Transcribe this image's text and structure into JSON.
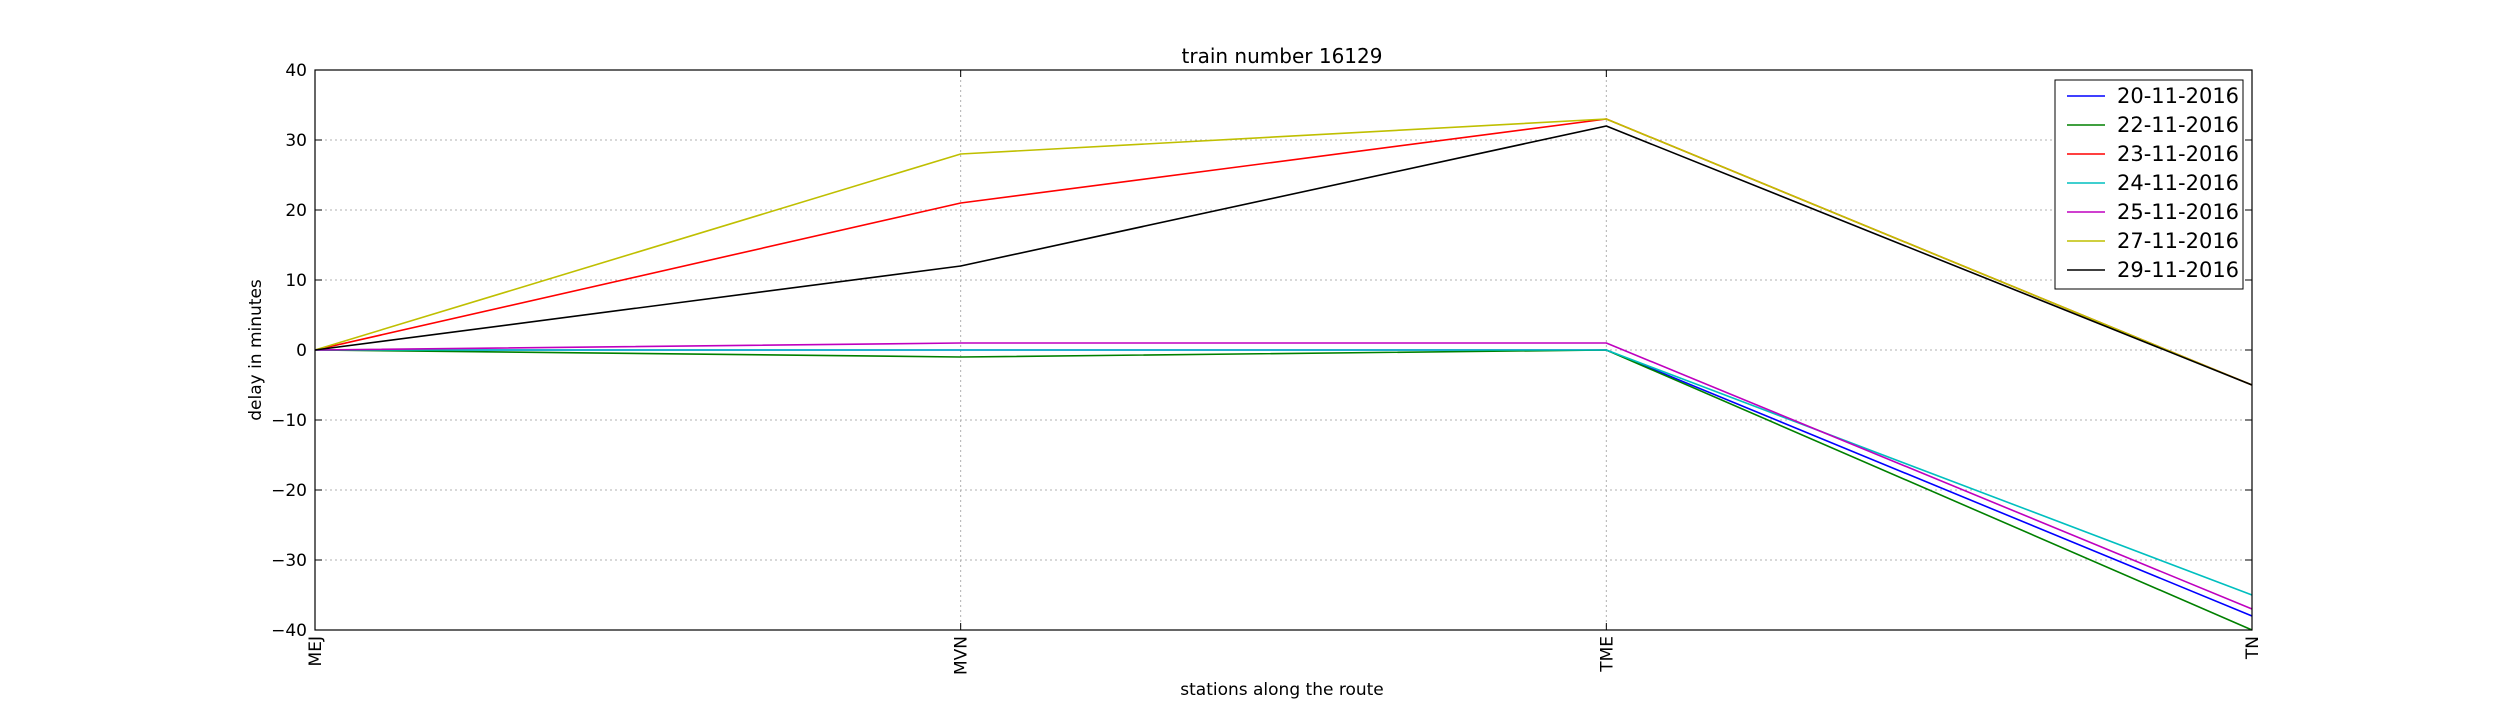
{
  "chart_data": {
    "type": "line",
    "title": "train number 16129",
    "xlabel": "stations along the route",
    "ylabel": "delay in minutes",
    "categories": [
      "MEJ",
      "MVN",
      "TME",
      "TN"
    ],
    "ylim": [
      -40,
      40
    ],
    "yticks": [
      40,
      30,
      20,
      10,
      0,
      -10,
      -20,
      -30,
      -40
    ],
    "ytick_labels": [
      "40",
      "30",
      "20",
      "10",
      "0",
      "−10",
      "−20",
      "−30",
      "−40"
    ],
    "grid": true,
    "legend_position": "top-right",
    "series": [
      {
        "name": "20-11-2016",
        "color": "#0000ff",
        "values": [
          0,
          0,
          0,
          -38
        ]
      },
      {
        "name": "22-11-2016",
        "color": "#008000",
        "values": [
          0,
          -1,
          0,
          -40
        ]
      },
      {
        "name": "23-11-2016",
        "color": "#ff0000",
        "values": [
          0,
          21,
          33,
          -5
        ]
      },
      {
        "name": "24-11-2016",
        "color": "#00bfbf",
        "values": [
          0,
          0,
          0,
          -35
        ]
      },
      {
        "name": "25-11-2016",
        "color": "#bf00bf",
        "values": [
          0,
          1,
          1,
          -37
        ]
      },
      {
        "name": "27-11-2016",
        "color": "#bfbf00",
        "values": [
          0,
          28,
          33,
          -5
        ]
      },
      {
        "name": "29-11-2016",
        "color": "#000000",
        "values": [
          0,
          12,
          32,
          -5
        ]
      }
    ]
  }
}
